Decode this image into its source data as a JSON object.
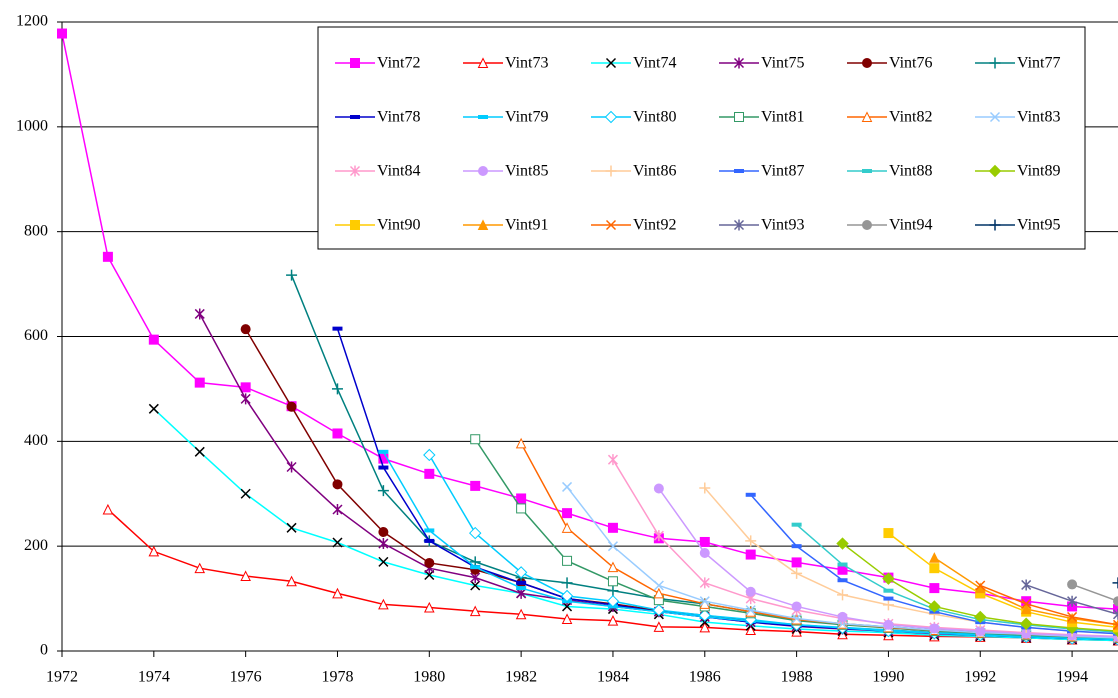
{
  "chart_data": {
    "type": "line",
    "x": [
      1972,
      1973,
      1974,
      1975,
      1976,
      1977,
      1978,
      1979,
      1980,
      1981,
      1982,
      1983,
      1984,
      1985,
      1986,
      1987,
      1988,
      1989,
      1990,
      1991,
      1992,
      1993,
      1994,
      1995
    ],
    "xlim": [
      1972,
      1995
    ],
    "xticks": [
      1972,
      1974,
      1976,
      1978,
      1980,
      1982,
      1984,
      1986,
      1988,
      1990,
      1992,
      1994
    ],
    "ylim": [
      0,
      1200
    ],
    "yticks": [
      0,
      200,
      400,
      600,
      800,
      1000,
      1200
    ],
    "grid": true,
    "legend": "upper right",
    "series": [
      {
        "name": "Vint72",
        "color": "#ff00ff",
        "marker": "square",
        "values": [
          1178,
          752,
          594,
          512,
          503,
          467,
          415,
          367,
          338,
          315,
          291,
          263,
          235,
          215,
          208,
          184,
          169,
          155,
          140,
          120,
          110,
          95,
          85,
          80
        ]
      },
      {
        "name": "Vint73",
        "color": "#ff0000",
        "marker": "triangle-open",
        "values": [
          null,
          270,
          190,
          158,
          143,
          133,
          110,
          89,
          83,
          76,
          70,
          61,
          58,
          46,
          45,
          40,
          37,
          32,
          30,
          28,
          27,
          25,
          22,
          20
        ]
      },
      {
        "name": "Vint74",
        "color": "#00ffff",
        "marker_color": "#000000",
        "marker": "x",
        "values": [
          null,
          null,
          462,
          380,
          300,
          235,
          207,
          170,
          145,
          125,
          110,
          85,
          80,
          70,
          55,
          48,
          42,
          38,
          35,
          30,
          28,
          25,
          22,
          20
        ]
      },
      {
        "name": "Vint75",
        "color": "#800080",
        "marker": "star",
        "values": [
          null,
          null,
          null,
          643,
          481,
          351,
          270,
          205,
          158,
          140,
          110,
          97,
          85,
          75,
          65,
          55,
          47,
          42,
          38,
          33,
          30,
          27,
          24,
          22
        ]
      },
      {
        "name": "Vint76",
        "color": "#800000",
        "marker": "circle",
        "values": [
          null,
          null,
          null,
          null,
          614,
          466,
          318,
          227,
          168,
          155,
          130,
          100,
          90,
          77,
          68,
          58,
          50,
          44,
          40,
          35,
          32,
          29,
          26,
          24
        ]
      },
      {
        "name": "Vint77",
        "color": "#008080",
        "marker": "plus",
        "values": [
          null,
          null,
          null,
          null,
          null,
          717,
          500,
          306,
          210,
          170,
          140,
          130,
          115,
          100,
          90,
          75,
          60,
          52,
          46,
          40,
          36,
          32,
          29,
          26
        ]
      },
      {
        "name": "Vint78",
        "color": "#0000cc",
        "marker": "dash",
        "values": [
          null,
          null,
          null,
          null,
          null,
          null,
          615,
          350,
          210,
          160,
          130,
          100,
          88,
          75,
          65,
          55,
          48,
          43,
          38,
          34,
          30,
          27,
          24,
          22
        ]
      },
      {
        "name": "Vint79",
        "color": "#00ccff",
        "marker": "dash",
        "values": [
          null,
          null,
          null,
          null,
          null,
          null,
          null,
          380,
          230,
          160,
          120,
          95,
          85,
          75,
          65,
          57,
          50,
          45,
          40,
          35,
          32,
          29,
          26,
          24
        ]
      },
      {
        "name": "Vint80",
        "color": "#00ccff",
        "marker": "diamond-open",
        "values": [
          null,
          null,
          null,
          null,
          null,
          null,
          null,
          null,
          374,
          225,
          150,
          105,
          95,
          78,
          68,
          60,
          50,
          44,
          38,
          34,
          30,
          27,
          24,
          22
        ]
      },
      {
        "name": "Vint81",
        "color": "#339966",
        "marker": "square-open",
        "values": [
          null,
          null,
          null,
          null,
          null,
          null,
          null,
          null,
          null,
          404,
          272,
          172,
          133,
          97,
          85,
          72,
          58,
          50,
          44,
          38,
          34,
          30,
          27,
          25
        ]
      },
      {
        "name": "Vint82",
        "color": "#ff6600",
        "marker": "triangle-open",
        "values": [
          null,
          null,
          null,
          null,
          null,
          null,
          null,
          null,
          null,
          null,
          396,
          235,
          160,
          110,
          90,
          75,
          60,
          52,
          45,
          40,
          35,
          32,
          28,
          26
        ]
      },
      {
        "name": "Vint83",
        "color": "#99ccff",
        "marker": "x",
        "values": [
          null,
          null,
          null,
          null,
          null,
          null,
          null,
          null,
          null,
          null,
          null,
          313,
          200,
          125,
          95,
          78,
          62,
          52,
          46,
          40,
          35,
          32,
          28,
          25
        ]
      },
      {
        "name": "Vint84",
        "color": "#ff99cc",
        "marker": "star",
        "values": [
          null,
          null,
          null,
          null,
          null,
          null,
          null,
          null,
          null,
          null,
          null,
          null,
          365,
          220,
          130,
          100,
          78,
          62,
          52,
          45,
          40,
          35,
          31,
          28
        ]
      },
      {
        "name": "Vint85",
        "color": "#cc99ff",
        "marker": "circle",
        "values": [
          null,
          null,
          null,
          null,
          null,
          null,
          null,
          null,
          null,
          null,
          null,
          null,
          null,
          310,
          187,
          113,
          85,
          65,
          50,
          43,
          38,
          33,
          30,
          27
        ]
      },
      {
        "name": "Vint86",
        "color": "#ffcc99",
        "marker": "plus",
        "values": [
          null,
          null,
          null,
          null,
          null,
          null,
          null,
          null,
          null,
          null,
          null,
          null,
          null,
          null,
          311,
          210,
          148,
          107,
          88,
          70,
          55,
          45,
          38,
          33
        ]
      },
      {
        "name": "Vint87",
        "color": "#3366ff",
        "marker": "dash",
        "values": [
          null,
          null,
          null,
          null,
          null,
          null,
          null,
          null,
          null,
          null,
          null,
          null,
          null,
          null,
          null,
          298,
          200,
          135,
          100,
          75,
          55,
          45,
          38,
          33
        ]
      },
      {
        "name": "Vint88",
        "color": "#33cccc",
        "marker": "dash",
        "values": [
          null,
          null,
          null,
          null,
          null,
          null,
          null,
          null,
          null,
          null,
          null,
          null,
          null,
          null,
          null,
          null,
          241,
          165,
          115,
          80,
          60,
          50,
          42,
          36
        ]
      },
      {
        "name": "Vint89",
        "color": "#99cc00",
        "marker": "diamond",
        "values": [
          null,
          null,
          null,
          null,
          null,
          null,
          null,
          null,
          null,
          null,
          null,
          null,
          null,
          null,
          null,
          null,
          null,
          205,
          138,
          85,
          65,
          52,
          44,
          38
        ]
      },
      {
        "name": "Vint90",
        "color": "#ffcc00",
        "marker": "square",
        "values": [
          null,
          null,
          null,
          null,
          null,
          null,
          null,
          null,
          null,
          null,
          null,
          null,
          null,
          null,
          null,
          null,
          null,
          null,
          225,
          158,
          110,
          75,
          55,
          45
        ]
      },
      {
        "name": "Vint91",
        "color": "#ff9900",
        "marker": "triangle",
        "values": [
          null,
          null,
          null,
          null,
          null,
          null,
          null,
          null,
          null,
          null,
          null,
          null,
          null,
          null,
          null,
          null,
          null,
          null,
          null,
          178,
          120,
          80,
          62,
          50
        ]
      },
      {
        "name": "Vint92",
        "color": "#ff6600",
        "marker": "x",
        "values": [
          null,
          null,
          null,
          null,
          null,
          null,
          null,
          null,
          null,
          null,
          null,
          null,
          null,
          null,
          null,
          null,
          null,
          null,
          null,
          null,
          125,
          90,
          65,
          50
        ]
      },
      {
        "name": "Vint93",
        "color": "#666699",
        "marker": "star",
        "values": [
          null,
          null,
          null,
          null,
          null,
          null,
          null,
          null,
          null,
          null,
          null,
          null,
          null,
          null,
          null,
          null,
          null,
          null,
          null,
          null,
          null,
          126,
          95,
          70
        ]
      },
      {
        "name": "Vint94",
        "color": "#969696",
        "marker": "circle",
        "values": [
          null,
          null,
          null,
          null,
          null,
          null,
          null,
          null,
          null,
          null,
          null,
          null,
          null,
          null,
          null,
          null,
          null,
          null,
          null,
          null,
          null,
          null,
          127,
          95
        ]
      },
      {
        "name": "Vint95",
        "color": "#003366",
        "marker": "plus",
        "values": [
          null,
          null,
          null,
          null,
          null,
          null,
          null,
          null,
          null,
          null,
          null,
          null,
          null,
          null,
          null,
          null,
          null,
          null,
          null,
          null,
          null,
          null,
          null,
          130
        ]
      }
    ]
  }
}
